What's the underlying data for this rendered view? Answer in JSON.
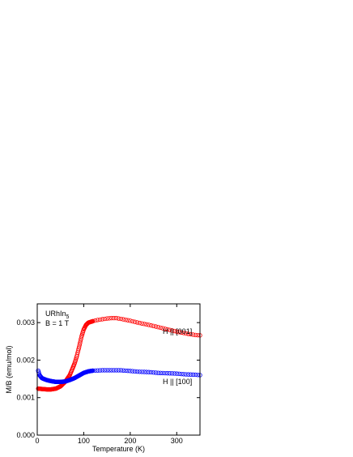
{
  "chart_data": {
    "type": "scatter",
    "xlabel": "Temperature (K)",
    "ylabel": "M/B (emu/mol)",
    "xlim": [
      0,
      350
    ],
    "ylim": [
      0,
      0.0035
    ],
    "x_ticks": [
      "0",
      "100",
      "200",
      "300"
    ],
    "y_ticks": [
      "0.000",
      "0.001",
      "0.002",
      "0.003"
    ],
    "x_tick_values": [
      0,
      100,
      200,
      300
    ],
    "y_tick_values": [
      0,
      0.001,
      0.002,
      0.003
    ],
    "grid": false,
    "annotations": {
      "compound": "URhIn",
      "compound_subscript": "5",
      "field": "B = 1 T"
    },
    "series": [
      {
        "name": "H || [001]",
        "color": "#ff0000",
        "marker": "open-circle",
        "curve": [
          [
            2,
            0.00124
          ],
          [
            10,
            0.00123
          ],
          [
            20,
            0.00122
          ],
          [
            30,
            0.00122
          ],
          [
            40,
            0.00124
          ],
          [
            50,
            0.0013
          ],
          [
            60,
            0.00142
          ],
          [
            70,
            0.0016
          ],
          [
            80,
            0.0019
          ],
          [
            85,
            0.0021
          ],
          [
            90,
            0.00235
          ],
          [
            95,
            0.00262
          ],
          [
            100,
            0.00282
          ],
          [
            105,
            0.00294
          ],
          [
            110,
            0.003
          ],
          [
            120,
            0.00304
          ],
          [
            130,
            0.00307
          ],
          [
            140,
            0.00309
          ],
          [
            150,
            0.00311
          ],
          [
            160,
            0.00312
          ],
          [
            170,
            0.00312
          ],
          [
            180,
            0.0031
          ],
          [
            200,
            0.00305
          ],
          [
            220,
            0.00299
          ],
          [
            240,
            0.00294
          ],
          [
            260,
            0.00288
          ],
          [
            280,
            0.00282
          ],
          [
            300,
            0.00276
          ],
          [
            320,
            0.00271
          ],
          [
            340,
            0.00267
          ],
          [
            350,
            0.00266
          ]
        ]
      },
      {
        "name": "H || [100]",
        "color": "#0000ff",
        "marker": "open-circle",
        "curve": [
          [
            2,
            0.00172
          ],
          [
            5,
            0.0016
          ],
          [
            10,
            0.00152
          ],
          [
            20,
            0.00147
          ],
          [
            30,
            0.00144
          ],
          [
            40,
            0.00142
          ],
          [
            50,
            0.00142
          ],
          [
            60,
            0.00143
          ],
          [
            70,
            0.00147
          ],
          [
            80,
            0.00152
          ],
          [
            90,
            0.00159
          ],
          [
            100,
            0.00166
          ],
          [
            110,
            0.0017
          ],
          [
            120,
            0.00172
          ],
          [
            140,
            0.00173
          ],
          [
            160,
            0.00173
          ],
          [
            180,
            0.00173
          ],
          [
            200,
            0.00171
          ],
          [
            220,
            0.00169
          ],
          [
            240,
            0.00168
          ],
          [
            260,
            0.00166
          ],
          [
            280,
            0.00165
          ],
          [
            300,
            0.00164
          ],
          [
            320,
            0.00162
          ],
          [
            340,
            0.00161
          ],
          [
            350,
            0.0016
          ]
        ]
      }
    ]
  }
}
